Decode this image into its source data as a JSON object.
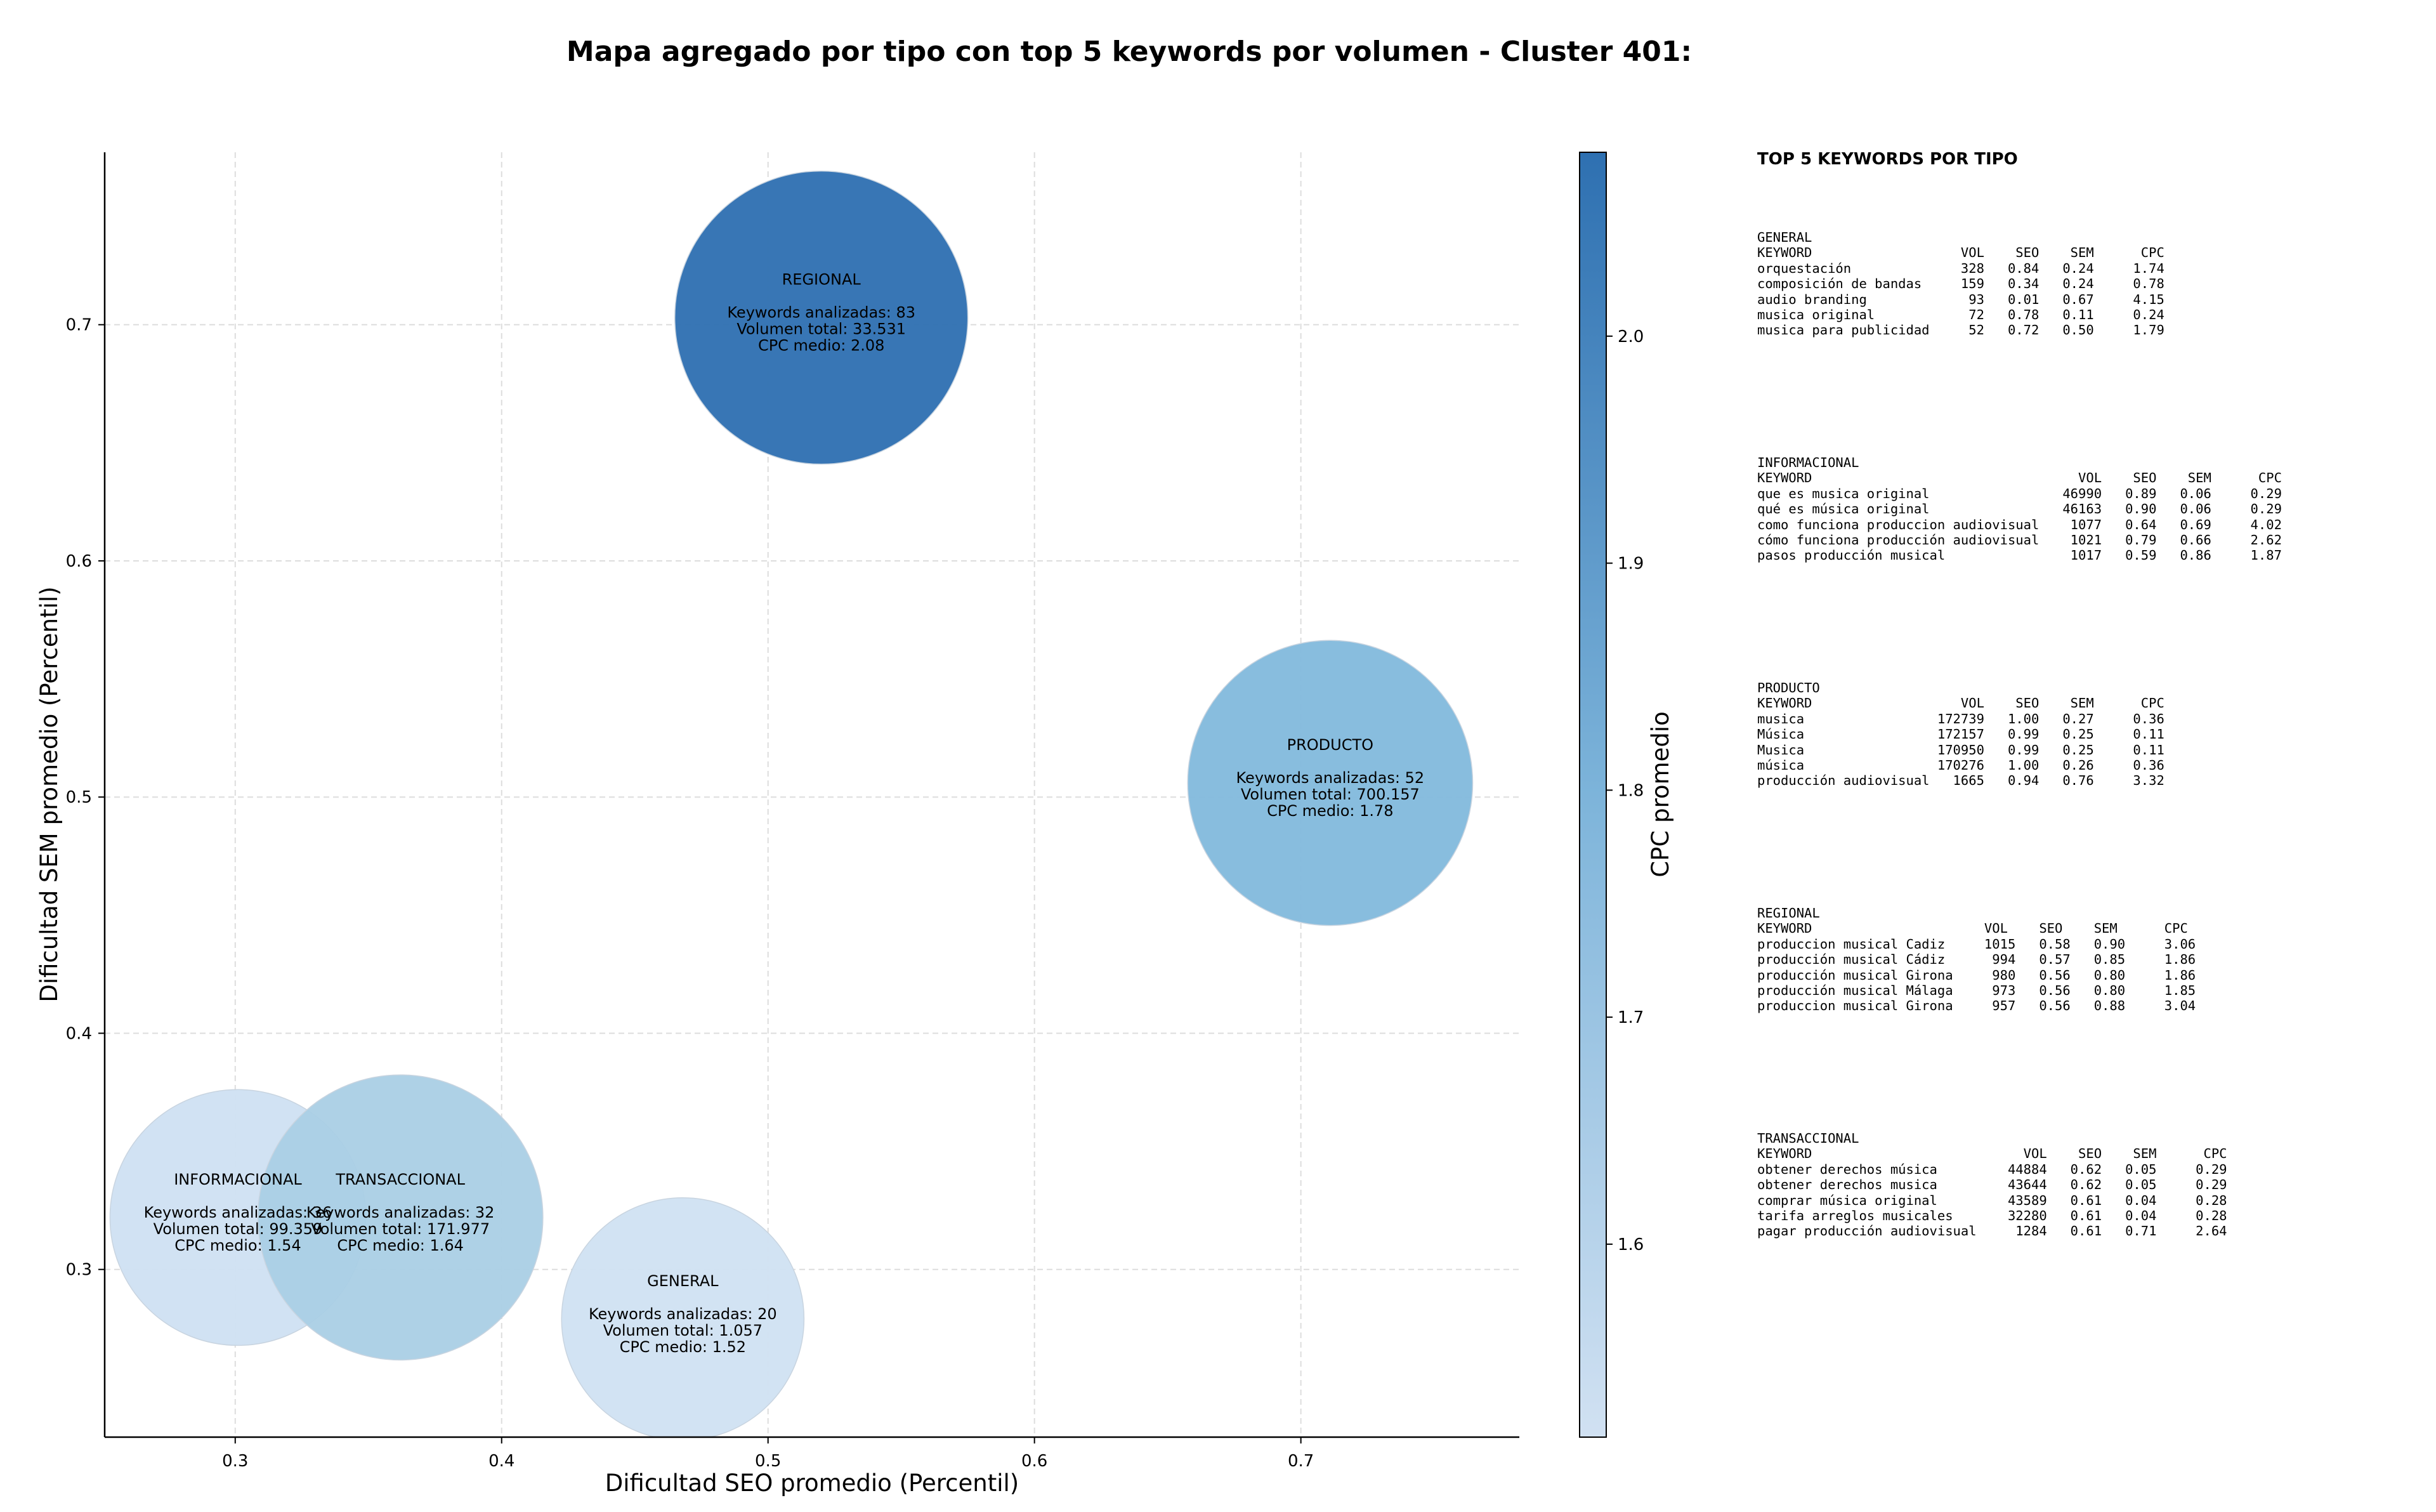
{
  "chart_data": {
    "type": "scatter",
    "title": "Mapa agregado por tipo con top 5 keywords por volumen - Cluster 401:",
    "xlabel": "Dificultad SEO promedio (Percentil)",
    "ylabel": "Dificultad SEM promedio (Percentil)",
    "xlim": [
      0.251,
      0.782
    ],
    "ylim": [
      0.229,
      0.773
    ],
    "xticks": [
      "0.3",
      "0.4",
      "0.5",
      "0.6",
      "0.7"
    ],
    "yticks": [
      "0.3",
      "0.4",
      "0.5",
      "0.6",
      "0.7"
    ],
    "grid": true,
    "colorbar": {
      "label": "CPC promedio",
      "range": [
        1.515,
        2.081
      ],
      "ticks": [
        "1.6",
        "1.7",
        "1.8",
        "1.9",
        "2.0"
      ],
      "colors": [
        "#d1e1f2",
        "#2e70b1"
      ]
    },
    "points": [
      {
        "name": "REGIONAL",
        "x": 0.52,
        "y": 0.703,
        "cpc": 2.08,
        "r": 0.055,
        "keywords": "Keywords analizadas: 83",
        "volume": "Volumen total: 33.531",
        "cpc_text": "CPC medio: 2.08",
        "color": "#2d6fb1"
      },
      {
        "name": "PRODUCTO",
        "x": 0.711,
        "y": 0.506,
        "cpc": 1.78,
        "r": 0.0535,
        "keywords": "Keywords analizadas: 52",
        "volume": "Volumen total: 700.157",
        "cpc_text": "CPC medio: 1.78",
        "color": "#82b9dc"
      },
      {
        "name": "INFORMACIONAL",
        "x": 0.301,
        "y": 0.322,
        "cpc": 1.54,
        "r": 0.048,
        "keywords": "Keywords analizadas: 36",
        "volume": "Volumen total: 99.359",
        "cpc_text": "CPC medio: 1.54",
        "color": "#cfe0f2"
      },
      {
        "name": "TRANSACCIONAL",
        "x": 0.362,
        "y": 0.322,
        "cpc": 1.64,
        "r": 0.0535,
        "keywords": "Keywords analizadas: 32",
        "volume": "Volumen total: 171.977",
        "cpc_text": "CPC medio: 1.64",
        "color": "#aacfe5"
      },
      {
        "name": "GENERAL",
        "x": 0.468,
        "y": 0.279,
        "cpc": 1.52,
        "r": 0.0455,
        "keywords": "Keywords analizadas: 20",
        "volume": "Volumen total: 1.057",
        "cpc_text": "CPC medio: 1.52",
        "color": "#d0e1f2"
      }
    ]
  },
  "side_panel": {
    "title": "TOP 5 KEYWORDS POR TIPO",
    "groups": [
      {
        "name": "GENERAL",
        "lines": [
          "GENERAL",
          "KEYWORD                   VOL    SEO    SEM      CPC",
          "orquestación              328   0.84   0.24     1.74",
          "composición de bandas     159   0.34   0.24     0.78",
          "audio branding             93   0.01   0.67     4.15",
          "musica original            72   0.78   0.11     0.24",
          "musica para publicidad     52   0.72   0.50     1.79"
        ]
      },
      {
        "name": "INFORMACIONAL",
        "lines": [
          "INFORMACIONAL",
          "KEYWORD                                  VOL    SEO    SEM      CPC",
          "que es musica original                 46990   0.89   0.06     0.29",
          "qué es música original                 46163   0.90   0.06     0.29",
          "como funciona produccion audiovisual    1077   0.64   0.69     4.02",
          "cómo funciona producción audiovisual    1021   0.79   0.66     2.62",
          "pasos producción musical                1017   0.59   0.86     1.87"
        ]
      },
      {
        "name": "PRODUCTO",
        "lines": [
          "PRODUCTO",
          "KEYWORD                   VOL    SEO    SEM      CPC",
          "musica                 172739   1.00   0.27     0.36",
          "Música                 172157   0.99   0.25     0.11",
          "Musica                 170950   0.99   0.25     0.11",
          "música                 170276   1.00   0.26     0.36",
          "producción audiovisual   1665   0.94   0.76     3.32"
        ]
      },
      {
        "name": "REGIONAL",
        "lines": [
          "REGIONAL",
          "KEYWORD                      VOL    SEO    SEM      CPC",
          "produccion musical Cadiz     1015   0.58   0.90     3.06",
          "producción musical Cádiz      994   0.57   0.85     1.86",
          "producción musical Girona     980   0.56   0.80     1.86",
          "producción musical Málaga     973   0.56   0.80     1.85",
          "produccion musical Girona     957   0.56   0.88     3.04"
        ]
      },
      {
        "name": "TRANSACCIONAL",
        "lines": [
          "TRANSACCIONAL",
          "KEYWORD                           VOL    SEO    SEM      CPC",
          "obtener derechos música         44884   0.62   0.05     0.29",
          "obtener derechos musica         43644   0.62   0.05     0.29",
          "comprar música original         43589   0.61   0.04     0.28",
          "tarifa arreglos musicales       32280   0.61   0.04     0.28",
          "pagar producción audiovisual     1284   0.61   0.71     2.64"
        ]
      }
    ]
  }
}
